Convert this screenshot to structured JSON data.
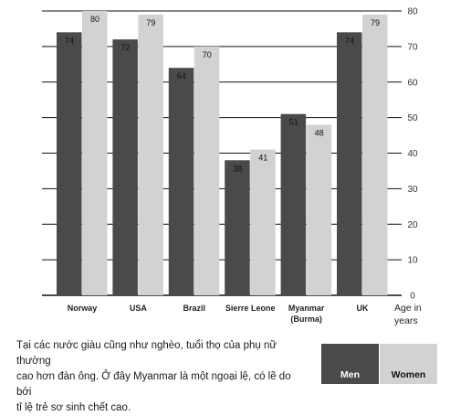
{
  "chart_data": {
    "type": "bar",
    "categories": [
      "Norway",
      "USA",
      "Brazil",
      "Sierre Leone",
      "Myanmar",
      "UK"
    ],
    "category_sublabels": [
      "",
      "",
      "",
      "",
      "(Burma)",
      ""
    ],
    "series": [
      {
        "name": "Men",
        "values": [
          74,
          72,
          64,
          38,
          51,
          74
        ],
        "color": "#4a4a4a"
      },
      {
        "name": "Women",
        "values": [
          80,
          79,
          70,
          41,
          48,
          79
        ],
        "color": "#d2d2d2"
      }
    ],
    "value_labels": {
      "Men": [
        "74",
        "72",
        "64",
        "38",
        "51",
        "74"
      ],
      "Women": [
        "80",
        "79",
        "70",
        "41",
        "48",
        "79"
      ]
    },
    "yticks": [
      0,
      10,
      20,
      30,
      40,
      50,
      60,
      70,
      80
    ],
    "ylim": [
      0,
      80
    ],
    "xlabel": "Age in years",
    "xlabel_lines": [
      "Age in",
      "years"
    ],
    "grid": true,
    "legend_position": "bottom-right"
  },
  "caption": {
    "lines": [
      "Tại các nước giàu cũng như nghèo, tuổi thọ của phụ nữ thường",
      "cao hơn đàn ông. Ở đây Myanmar là một ngoại lệ, có lẽ do bởi",
      "tỉ lệ trẻ sơ sinh chết cao."
    ]
  },
  "legend": {
    "men": "Men",
    "women": "Women"
  }
}
